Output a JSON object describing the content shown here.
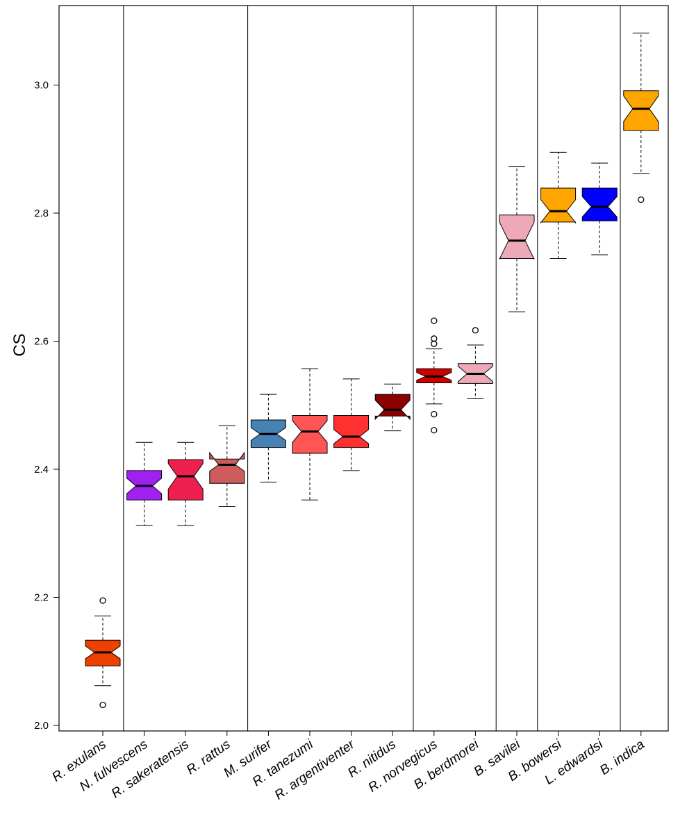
{
  "chart_data": {
    "type": "box",
    "subtype": "notched boxplot",
    "title": "",
    "xlabel": "",
    "ylabel": "CS",
    "ylim": [
      1.98,
      3.12
    ],
    "yticks": [
      "2.0",
      "2.2",
      "2.4",
      "2.6",
      "2.8",
      "3.0"
    ],
    "grid": false,
    "legend": "none",
    "categories": [
      "R. exulans",
      "N. fulvescens",
      "R. sakeratensis",
      "R. rattus",
      "M. surifer",
      "R. tanezumi",
      "R. argentiventer",
      "R. nitidus",
      "R. norvegicus",
      "B. berdmorei",
      "B. savilei",
      "B. bowersi",
      "L. edwardsi",
      "B. indica"
    ],
    "group_separators_after": [
      1,
      4,
      8,
      10,
      11,
      13
    ],
    "boxes": [
      {
        "label": "R. exulans",
        "color": "#EE4000",
        "whisker_low": 2.062,
        "q1": 2.093,
        "median": 2.114,
        "q3": 2.133,
        "whisker_high": 2.171,
        "notch": [
          2.104,
          2.124
        ],
        "outliers": [
          2.195,
          2.032
        ]
      },
      {
        "label": "N. fulvescens",
        "color": "#A020F0",
        "whisker_low": 2.312,
        "q1": 2.352,
        "median": 2.374,
        "q3": 2.398,
        "whisker_high": 2.442,
        "notch": [
          2.362,
          2.386
        ],
        "outliers": []
      },
      {
        "label": "R. sakeratensis",
        "color": "#EE2050",
        "whisker_low": 2.312,
        "q1": 2.352,
        "median": 2.389,
        "q3": 2.415,
        "whisker_high": 2.442,
        "notch": [
          2.369,
          2.409
        ],
        "outliers": []
      },
      {
        "label": "R. rattus",
        "color": "#CD5C5C",
        "whisker_low": 2.342,
        "q1": 2.378,
        "median": 2.407,
        "q3": 2.416,
        "whisker_high": 2.468,
        "notch": [
          2.397,
          2.426
        ],
        "outliers": []
      },
      {
        "label": "M. surifer",
        "color": "#4682B4",
        "whisker_low": 2.38,
        "q1": 2.434,
        "median": 2.455,
        "q3": 2.477,
        "whisker_high": 2.517,
        "notch": [
          2.445,
          2.465
        ],
        "outliers": []
      },
      {
        "label": "R. tanezumi",
        "color": "#FF5555",
        "whisker_low": 2.352,
        "q1": 2.425,
        "median": 2.459,
        "q3": 2.484,
        "whisker_high": 2.557,
        "notch": [
          2.442,
          2.476
        ],
        "outliers": []
      },
      {
        "label": "R. argentiventer",
        "color": "#FF3030",
        "whisker_low": 2.398,
        "q1": 2.434,
        "median": 2.451,
        "q3": 2.484,
        "whisker_high": 2.541,
        "notch": [
          2.44,
          2.462
        ],
        "outliers": []
      },
      {
        "label": "R. nitidus",
        "color": "#8B0000",
        "whisker_low": 2.46,
        "q1": 2.483,
        "median": 2.493,
        "q3": 2.517,
        "whisker_high": 2.533,
        "notch": [
          2.478,
          2.508
        ],
        "outliers": []
      },
      {
        "label": "R. norvegicus",
        "color": "#CD0000",
        "whisker_low": 2.502,
        "q1": 2.535,
        "median": 2.545,
        "q3": 2.557,
        "whisker_high": 2.588,
        "notch": [
          2.539,
          2.551
        ],
        "outliers": [
          2.632,
          2.604,
          2.596,
          2.486,
          2.461
        ]
      },
      {
        "label": "B. berdmorei",
        "color": "#EEA9B8",
        "whisker_low": 2.51,
        "q1": 2.534,
        "median": 2.549,
        "q3": 2.565,
        "whisker_high": 2.594,
        "notch": [
          2.537,
          2.561
        ],
        "outliers": [
          2.617
        ]
      },
      {
        "label": "B. savilei",
        "color": "#EEA9B8",
        "whisker_low": 2.646,
        "q1": 2.729,
        "median": 2.757,
        "q3": 2.797,
        "whisker_high": 2.873,
        "notch": [
          2.728,
          2.786
        ],
        "outliers": []
      },
      {
        "label": "B. bowersi",
        "color": "#FFA500",
        "whisker_low": 2.729,
        "q1": 2.786,
        "median": 2.803,
        "q3": 2.839,
        "whisker_high": 2.895,
        "notch": [
          2.785,
          2.821
        ],
        "outliers": []
      },
      {
        "label": "L. edwardsi",
        "color": "#0000FF",
        "whisker_low": 2.735,
        "q1": 2.788,
        "median": 2.81,
        "q3": 2.839,
        "whisker_high": 2.878,
        "notch": [
          2.794,
          2.826
        ],
        "outliers": []
      },
      {
        "label": "B. indica",
        "color": "#FFA500",
        "whisker_low": 2.862,
        "q1": 2.929,
        "median": 2.963,
        "q3": 2.991,
        "whisker_high": 3.081,
        "notch": [
          2.943,
          2.983
        ],
        "outliers": [
          2.821
        ]
      }
    ]
  }
}
